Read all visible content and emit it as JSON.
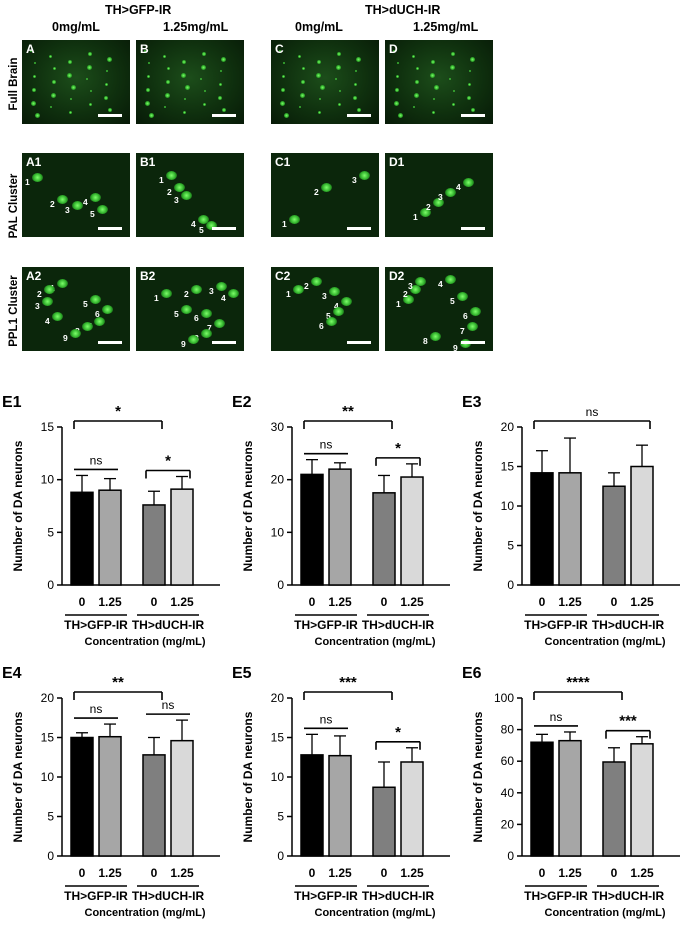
{
  "header": {
    "group_left": "TH>GFP-IR",
    "group_right": "TH>dUCH-IR",
    "conc_labels": [
      "0mg/mL",
      "1.25mg/mL",
      "0mg/mL",
      "1.25mg/mL"
    ]
  },
  "row_labels": [
    "Full Brain",
    "PAL Cluster",
    "PPL1 Cluster"
  ],
  "micrographs": {
    "row1": [
      "A",
      "B",
      "C",
      "D"
    ],
    "row2": [
      "A1",
      "B1",
      "C1",
      "D1"
    ],
    "row3": [
      "A2",
      "B2",
      "C2",
      "D2"
    ]
  },
  "neuron_labels": {
    "A1": [
      "1",
      "2",
      "3",
      "4",
      "5"
    ],
    "B1": [
      "1",
      "2",
      "3",
      "4",
      "5"
    ],
    "C1": [
      "1",
      "2",
      "3"
    ],
    "D1": [
      "1",
      "2",
      "3",
      "4"
    ],
    "A2": [
      "1",
      "2",
      "3",
      "4",
      "5",
      "6",
      "7",
      "8",
      "9"
    ],
    "B2": [
      "1",
      "2",
      "3",
      "4",
      "5",
      "6",
      "7",
      "8",
      "9"
    ],
    "C2": [
      "1",
      "2",
      "3",
      "4",
      "5",
      "6"
    ],
    "D2": [
      "1",
      "2",
      "3",
      "4",
      "5",
      "6",
      "7",
      "8",
      "9"
    ]
  },
  "colors": {
    "bar_gfp_0": "#000000",
    "bar_gfp_125": "#a6a6a6",
    "bar_duch_0": "#7f7f7f",
    "bar_duch_125": "#d9d9d9",
    "micrograph_bg": "#0b260b",
    "fluorescence": "#4fd84a"
  },
  "chart_data": [
    {
      "panel": "E1",
      "type": "bar",
      "ylabel": "Number of DA neurons",
      "xlabel": "Concentration (mg/mL)",
      "categories": [
        "0",
        "1.25",
        "0",
        "1.25"
      ],
      "groups": [
        "TH>GFP-IR",
        "TH>dUCH-IR"
      ],
      "values": [
        8.8,
        9.0,
        7.6,
        9.1
      ],
      "errors": [
        1.6,
        1.1,
        1.3,
        1.2
      ],
      "ylim": [
        0,
        15
      ],
      "yticks": [
        0,
        5,
        10,
        15
      ],
      "significance": [
        {
          "label": "ns",
          "from": 0,
          "to": 1,
          "level": 1
        },
        {
          "label": "*",
          "from": 0,
          "to": 2,
          "level": 2
        },
        {
          "label": "*",
          "from": 2,
          "to": 3,
          "level": 1
        }
      ]
    },
    {
      "panel": "E2",
      "type": "bar",
      "ylabel": "Number of DA neurons",
      "xlabel": "Concentration (mg/mL)",
      "categories": [
        "0",
        "1.25",
        "0",
        "1.25"
      ],
      "groups": [
        "TH>GFP-IR",
        "TH>dUCH-IR"
      ],
      "values": [
        21.0,
        22.0,
        17.5,
        20.5
      ],
      "errors": [
        2.8,
        1.2,
        3.3,
        2.5
      ],
      "ylim": [
        0,
        30
      ],
      "yticks": [
        0,
        10,
        20,
        30
      ],
      "significance": [
        {
          "label": "ns",
          "from": 0,
          "to": 1,
          "level": 1
        },
        {
          "label": "**",
          "from": 0,
          "to": 2,
          "level": 2
        },
        {
          "label": "*",
          "from": 2,
          "to": 3,
          "level": 1
        }
      ]
    },
    {
      "panel": "E3",
      "type": "bar",
      "ylabel": "Number of DA neurons",
      "xlabel": "Concentration (mg/mL)",
      "categories": [
        "0",
        "1.25",
        "0",
        "1.25"
      ],
      "groups": [
        "TH>GFP-IR",
        "TH>dUCH-IR"
      ],
      "values": [
        14.2,
        14.2,
        12.5,
        15.0
      ],
      "errors": [
        2.8,
        4.4,
        1.7,
        2.7
      ],
      "ylim": [
        0,
        20
      ],
      "yticks": [
        0,
        5,
        10,
        15,
        20
      ],
      "significance": [
        {
          "label": "ns",
          "from": 0,
          "to": 3,
          "level": 2
        }
      ]
    },
    {
      "panel": "E4",
      "type": "bar",
      "ylabel": "Number of DA neurons",
      "xlabel": "Concentration (mg/mL)",
      "categories": [
        "0",
        "1.25",
        "0",
        "1.25"
      ],
      "groups": [
        "TH>GFP-IR",
        "TH>dUCH-IR"
      ],
      "values": [
        15.0,
        15.1,
        12.8,
        14.6
      ],
      "errors": [
        0.6,
        1.6,
        2.2,
        2.6
      ],
      "ylim": [
        0,
        20
      ],
      "yticks": [
        0,
        5,
        10,
        15,
        20
      ],
      "significance": [
        {
          "label": "ns",
          "from": 0,
          "to": 1,
          "level": 1
        },
        {
          "label": "**",
          "from": 0,
          "to": 2,
          "level": 2
        },
        {
          "label": "ns",
          "from": 2,
          "to": 3,
          "level": 1
        }
      ]
    },
    {
      "panel": "E5",
      "type": "bar",
      "ylabel": "Number of DA neurons",
      "xlabel": "Concentration (mg/mL)",
      "categories": [
        "0",
        "1.25",
        "0",
        "1.25"
      ],
      "groups": [
        "TH>GFP-IR",
        "TH>dUCH-IR"
      ],
      "values": [
        12.8,
        12.7,
        8.7,
        11.9
      ],
      "errors": [
        2.6,
        2.5,
        3.2,
        1.8
      ],
      "ylim": [
        0,
        20
      ],
      "yticks": [
        0,
        5,
        10,
        15,
        20
      ],
      "significance": [
        {
          "label": "ns",
          "from": 0,
          "to": 1,
          "level": 1
        },
        {
          "label": "***",
          "from": 0,
          "to": 2,
          "level": 2
        },
        {
          "label": "*",
          "from": 2,
          "to": 3,
          "level": 1
        }
      ]
    },
    {
      "panel": "E6",
      "type": "bar",
      "ylabel": "Number of DA neurons",
      "xlabel": "Concentration (mg/mL)",
      "categories": [
        "0",
        "1.25",
        "0",
        "1.25"
      ],
      "groups": [
        "TH>GFP-IR",
        "TH>dUCH-IR"
      ],
      "values": [
        72,
        73,
        59.5,
        71
      ],
      "errors": [
        5,
        5.5,
        9,
        4.5
      ],
      "ylim": [
        0,
        100
      ],
      "yticks": [
        0,
        20,
        40,
        60,
        80,
        100
      ],
      "significance": [
        {
          "label": "ns",
          "from": 0,
          "to": 1,
          "level": 1
        },
        {
          "label": "****",
          "from": 0,
          "to": 2,
          "level": 2
        },
        {
          "label": "***",
          "from": 2,
          "to": 3,
          "level": 1
        }
      ]
    }
  ]
}
